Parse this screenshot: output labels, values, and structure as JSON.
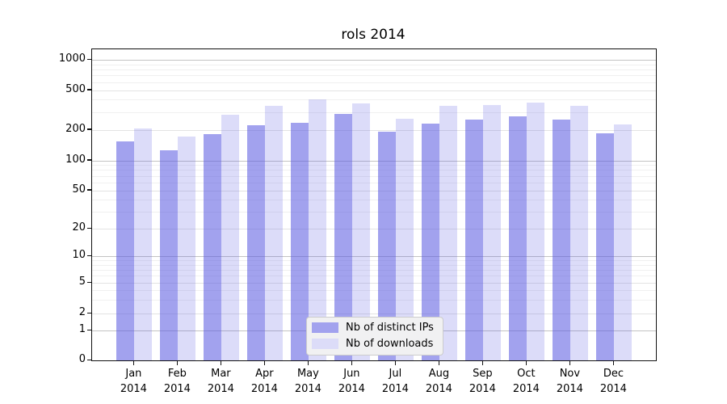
{
  "figure": {
    "title": "rols 2014"
  },
  "chart_data": {
    "type": "bar",
    "title": "rols 2014",
    "yscale": "log",
    "ylim": [
      0,
      1000
    ],
    "grid": true,
    "legend_position": "lower center",
    "categories": [
      "Jan",
      "Feb",
      "Mar",
      "Apr",
      "May",
      "Jun",
      "Jul",
      "Aug",
      "Sep",
      "Oct",
      "Nov",
      "Dec"
    ],
    "category_year": "2014",
    "x_tick_labels": [
      "Jan 2014",
      "Feb 2014",
      "Mar 2014",
      "Apr 2014",
      "May 2014",
      "Jun 2014",
      "Jul 2014",
      "Aug 2014",
      "Sep 2014",
      "Oct 2014",
      "Nov 2014",
      "Dec 2014"
    ],
    "series": [
      {
        "name": "Nb of distinct IPs",
        "color": "#a2a2ee",
        "bar_fill": "rgba(90,90,225,0.56)",
        "values": [
          155,
          125,
          180,
          220,
          235,
          290,
          190,
          230,
          255,
          275,
          255,
          185
        ]
      },
      {
        "name": "Nb of downloads",
        "color": "#dcdcf8",
        "bar_fill": "rgba(90,90,225,0.21)",
        "values": [
          205,
          170,
          285,
          345,
          400,
          370,
          260,
          350,
          355,
          375,
          345,
          225
        ]
      }
    ],
    "y_tick_values": [
      1000,
      500,
      200,
      100,
      50,
      20,
      10,
      5,
      2,
      1,
      0
    ],
    "y_tick_labels": [
      "1000",
      "500",
      "200",
      "100",
      "50",
      "20",
      "10",
      "5",
      "2",
      "1",
      "0"
    ],
    "y_decade_ticks": [
      1,
      10,
      100,
      1000
    ],
    "y_minor_ticks": [
      3,
      4,
      6,
      7,
      8,
      9,
      30,
      40,
      60,
      70,
      80,
      90,
      300,
      400,
      600,
      700,
      800,
      900
    ]
  }
}
